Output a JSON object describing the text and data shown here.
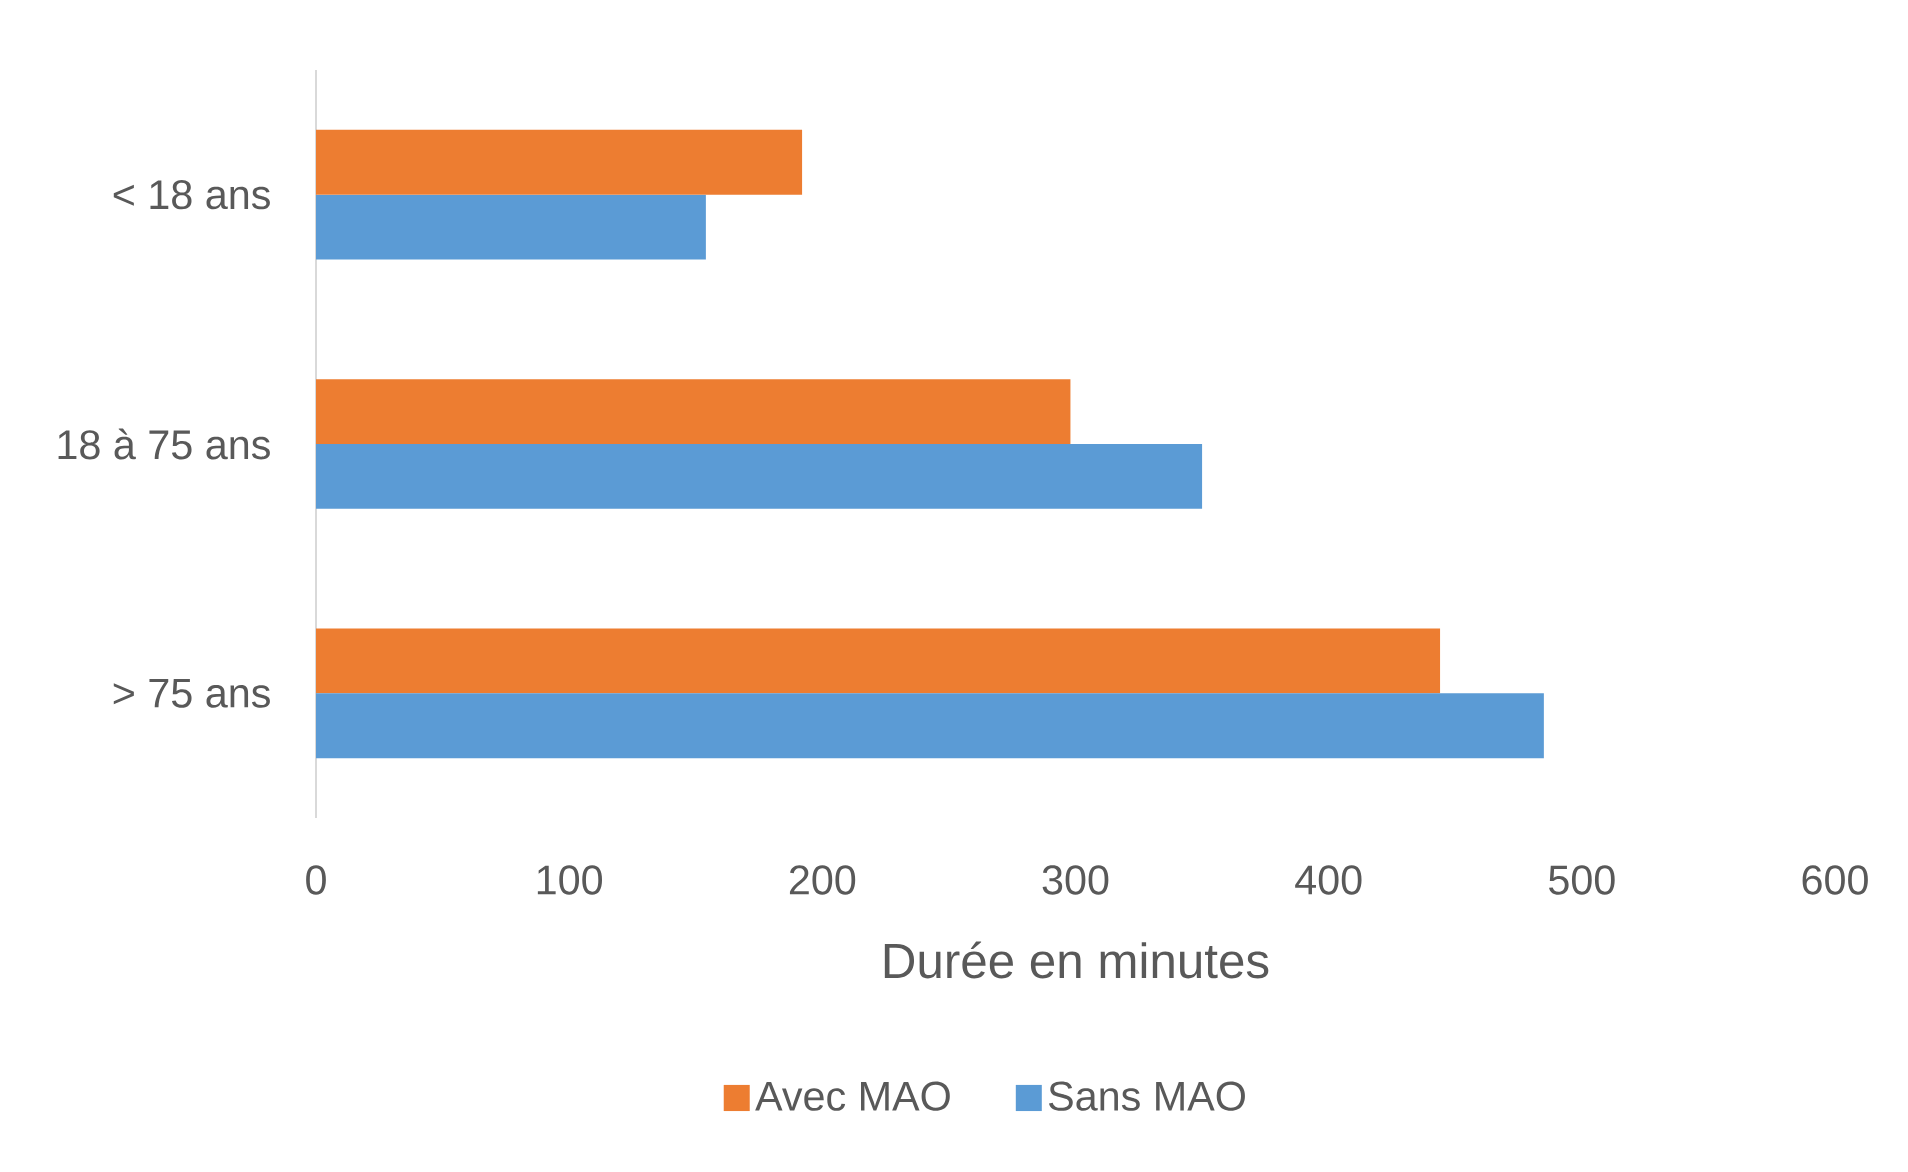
{
  "chart_data": {
    "type": "bar",
    "orientation": "horizontal",
    "xlabel": "Durée en minutes",
    "categories": [
      "< 18 ans",
      "18 à 75 ans",
      "> 75 ans"
    ],
    "series": [
      {
        "name": "Avec MAO",
        "color": "#ed7d31",
        "values": [
          192,
          298,
          444
        ]
      },
      {
        "name": "Sans MAO",
        "color": "#5b9bd5",
        "values": [
          154,
          350,
          485
        ]
      }
    ],
    "xlim": [
      0,
      600
    ],
    "xticks": [
      0,
      100,
      200,
      300,
      400,
      500,
      600
    ],
    "legend": "bottom"
  }
}
